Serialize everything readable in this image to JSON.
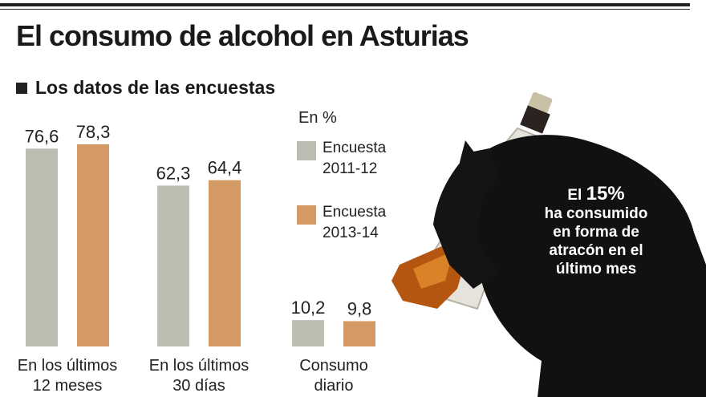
{
  "header": {
    "title": "El consumo de alcohol en Asturias",
    "subtitle": "Los datos de las encuestas"
  },
  "legend": {
    "units": "En %",
    "items": [
      {
        "line1": "Encuesta",
        "line2": "2011-12",
        "color": "#b9beb0"
      },
      {
        "line1": "Encuesta",
        "line2": "2013-14",
        "color": "#d39a66"
      }
    ]
  },
  "callout": {
    "prefix": "El",
    "highlight": "15%",
    "line2": "ha consumido",
    "line3": "en forma de",
    "line4": "atracón en el",
    "line5": "último mes"
  },
  "chart_data": {
    "type": "bar",
    "categories": [
      [
        "En los últimos",
        "12 meses"
      ],
      [
        "En los últimos",
        "30 días"
      ],
      [
        "Consumo",
        "diario"
      ]
    ],
    "series": [
      {
        "name": "Encuesta 2011-12",
        "values": [
          76.6,
          62.3,
          10.2
        ],
        "labels": [
          "76,6",
          "62,3",
          "10,2"
        ],
        "color": "#b9beb0"
      },
      {
        "name": "Encuesta 2013-14",
        "values": [
          78.3,
          64.4,
          9.8
        ],
        "labels": [
          "78,3",
          "64,4",
          "9,8"
        ],
        "color": "#d39a66"
      }
    ],
    "title": "Los datos de las encuestas",
    "ylabel": "En %",
    "ylim": [
      0,
      100
    ],
    "grid": false,
    "legend_position": "right"
  }
}
